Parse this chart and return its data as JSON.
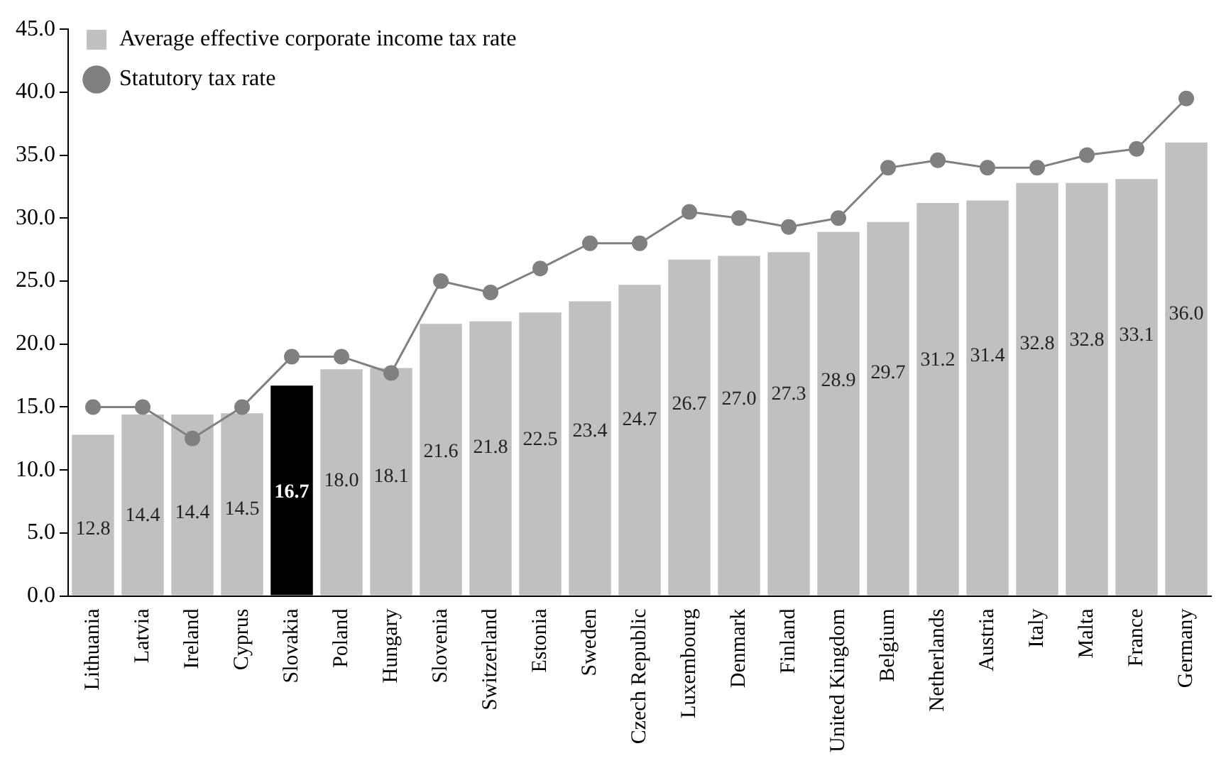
{
  "chart_data": {
    "type": "bar",
    "categories": [
      "Lithuania",
      "Latvia",
      "Ireland",
      "Cyprus",
      "Slovakia",
      "Poland",
      "Hungary",
      "Slovenia",
      "Switzerland",
      "Estonia",
      "Sweden",
      "Czech Republic",
      "Luxembourg",
      "Denmark",
      "Finland",
      "United Kingdom",
      "Belgium",
      "Netherlands",
      "Austria",
      "Italy",
      "Malta",
      "France",
      "Germany"
    ],
    "series": [
      {
        "name": "Average effective corporate income tax rate",
        "color": "#c0c0c0",
        "colors": [
          "#c0c0c0",
          "#c0c0c0",
          "#c0c0c0",
          "#c0c0c0",
          "#000000",
          "#c0c0c0",
          "#c0c0c0",
          "#c0c0c0",
          "#c0c0c0",
          "#c0c0c0",
          "#c0c0c0",
          "#c0c0c0",
          "#c0c0c0",
          "#c0c0c0",
          "#c0c0c0",
          "#c0c0c0",
          "#c0c0c0",
          "#c0c0c0",
          "#c0c0c0",
          "#c0c0c0",
          "#c0c0c0",
          "#c0c0c0",
          "#c0c0c0"
        ],
        "values": [
          12.8,
          14.4,
          14.4,
          14.5,
          16.7,
          18.0,
          18.1,
          21.6,
          21.8,
          22.5,
          23.4,
          24.7,
          26.7,
          27.0,
          27.3,
          28.9,
          29.7,
          31.2,
          31.4,
          32.8,
          32.8,
          33.1,
          36.0
        ],
        "value_labels": [
          "12.8",
          "14.4",
          "14.4",
          "14.5",
          "16.7",
          "18.0",
          "18.1",
          "21.6",
          "21.8",
          "22.5",
          "23.4",
          "24.7",
          "26.7",
          "27.0",
          "27.3",
          "28.9",
          "29.7",
          "31.2",
          "31.4",
          "32.8",
          "32.8",
          "33.1",
          "36.0"
        ]
      },
      {
        "name": "Statutory tax rate",
        "type": "line",
        "color": "#808080",
        "values": [
          15,
          15,
          12.5,
          15,
          19,
          19,
          17.7,
          25,
          24.1,
          26,
          28,
          28,
          30.5,
          30,
          29.3,
          30,
          34,
          34.6,
          34,
          34,
          35,
          35.5,
          39.5
        ]
      }
    ],
    "ylim": [
      0,
      45
    ],
    "yticks": [
      {
        "value": 0,
        "label": "0.0"
      },
      {
        "value": 5,
        "label": "5.0"
      },
      {
        "value": 10,
        "label": "10.0"
      },
      {
        "value": 15,
        "label": "15.0"
      },
      {
        "value": 20,
        "label": "20.0"
      },
      {
        "value": 25,
        "label": "25.0"
      },
      {
        "value": 30,
        "label": "30.0"
      },
      {
        "value": 35,
        "label": "35.0"
      },
      {
        "value": 40,
        "label": "40.0"
      },
      {
        "value": 45,
        "label": "45.0"
      }
    ],
    "grid": false,
    "legend": "top left",
    "marker": "circle",
    "line_style": "solid"
  }
}
